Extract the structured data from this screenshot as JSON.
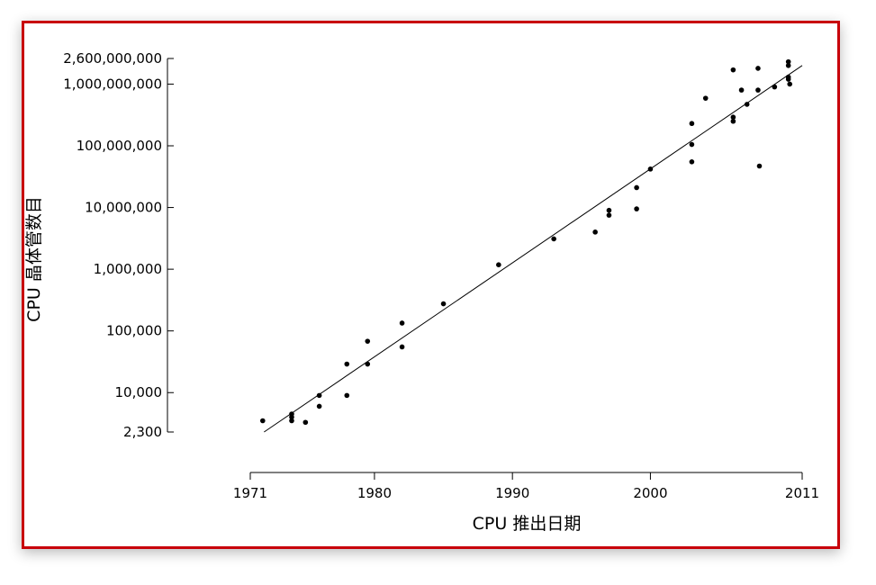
{
  "chart_data": {
    "type": "scatter",
    "title": "",
    "xlabel": "CPU 推出日期",
    "ylabel": "CPU 晶体管数目",
    "y_scale": "log",
    "grid": false,
    "x_ticks": [
      "1971",
      "1980",
      "1990",
      "2000",
      "2011"
    ],
    "y_ticks": [
      "2,600,000,000",
      "1,000,000,000",
      "100,000,000",
      "10,000,000",
      "1,000,000",
      "100,000",
      "10,000",
      "2,300"
    ],
    "x_tick_values": [
      1971,
      1980,
      1990,
      2000,
      2011
    ],
    "y_tick_values": [
      2600000000,
      1000000000,
      100000000,
      10000000,
      1000000,
      100000,
      10000,
      2300
    ],
    "xlim": [
      1971,
      2011
    ],
    "ylim": [
      2300,
      2600000000
    ],
    "trend_line": {
      "x": [
        1972,
        2011
      ],
      "y": [
        2300,
        2000000000
      ]
    },
    "points": {
      "x": [
        1971.9,
        1974.0,
        1974.0,
        1974.0,
        1975.0,
        1976.0,
        1976.0,
        1978.0,
        1978.0,
        1979.5,
        1979.5,
        1982.0,
        1982.0,
        1985.0,
        1989.0,
        1993.0,
        1996.0,
        1997.0,
        1997.0,
        1999.0,
        1999.0,
        2000.0,
        2003.0,
        2003.0,
        2003.0,
        2004.0,
        2006.0,
        2006.0,
        2006.0,
        2006.6,
        2007.0,
        2007.8,
        2007.8,
        2007.9,
        2009.0,
        2010.0,
        2010.0,
        2010.0,
        2010.0,
        2010.1
      ],
      "y": [
        3500,
        4500,
        4000,
        3500,
        3300,
        9000,
        6000,
        9000,
        29000,
        68000,
        29000,
        134000,
        55000,
        275000,
        1180000,
        3100000,
        4000000,
        7500000,
        9000000,
        21000000,
        9500000,
        42000000,
        55000000,
        105000000,
        230000000,
        590000000,
        291000000,
        250000000,
        1700000000,
        800000000,
        470000000,
        1800000000,
        800000000,
        47000000,
        900000000,
        2300000000,
        2000000000,
        1300000000,
        1200000000,
        1000000000
      ]
    }
  }
}
